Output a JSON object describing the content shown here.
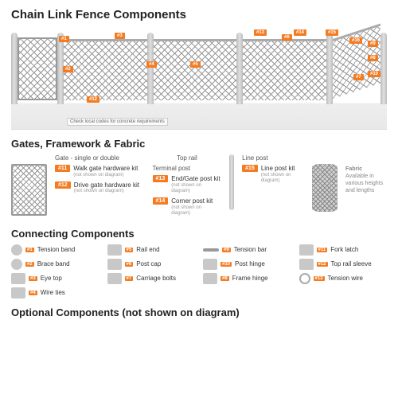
{
  "title": "Chain Link Fence Components",
  "sections": {
    "s2": "Gates, Framework & Fabric",
    "s3": "Connecting Components",
    "s4": "Optional Components (not shown on diagram)"
  },
  "note": "Check local codes for concrete requirements",
  "tags": [
    {
      "n": "#1",
      "t": 12,
      "l": 60
    },
    {
      "n": "#2",
      "t": 50,
      "l": 65
    },
    {
      "n": "#12",
      "t": 88,
      "l": 95
    },
    {
      "n": "#3",
      "t": 8,
      "l": 130
    },
    {
      "n": "#4",
      "t": 44,
      "l": 170
    },
    {
      "n": "#5",
      "t": 44,
      "l": 225
    },
    {
      "n": "#13",
      "t": 4,
      "l": 305
    },
    {
      "n": "#6",
      "t": 10,
      "l": 340
    },
    {
      "n": "#14",
      "t": 4,
      "l": 355
    },
    {
      "n": "#15",
      "t": 4,
      "l": 395
    },
    {
      "n": "#16",
      "t": 14,
      "l": 425
    },
    {
      "n": "#7",
      "t": 60,
      "l": 430
    },
    {
      "n": "#9",
      "t": 18,
      "l": 448
    },
    {
      "n": "#8",
      "t": 36,
      "l": 448
    },
    {
      "n": "#10",
      "t": 56,
      "l": 448
    }
  ],
  "accent": "#f47b20",
  "gateLabel": "Gate - single or double",
  "kits": {
    "g1": {
      "n": "#11",
      "t": "Walk gate hardware kit",
      "s": "(not shown on diagram)"
    },
    "g2": {
      "n": "#12",
      "t": "Drive gate hardware kit",
      "s": "(not shown on diagram)"
    },
    "p1": {
      "n": "#13",
      "t": "End/Gate post kit",
      "s": "(not shown on diagram)"
    },
    "p2": {
      "n": "#14",
      "t": "Corner post kit",
      "s": "(not shown on diagram)"
    },
    "l1": {
      "n": "#15",
      "t": "Line post kit",
      "s": "(not shown on diagram)"
    }
  },
  "labels": {
    "toprail": "Top rail",
    "terminal": "Terminal post",
    "line": "Line post",
    "fabric": "Fabric",
    "fabricNote": "Available in various heights and lengths"
  },
  "components": [
    {
      "n": "#1",
      "t": "Tension band",
      "i": "round"
    },
    {
      "n": "#5",
      "t": "Rail end",
      "i": ""
    },
    {
      "n": "#9",
      "t": "Tension bar",
      "i": "bar"
    },
    {
      "n": "#11",
      "t": "Fork latch",
      "i": ""
    },
    {
      "n": "#2",
      "t": "Brace band",
      "i": "round"
    },
    {
      "n": "#6",
      "t": "Post cap",
      "i": ""
    },
    {
      "n": "#10",
      "t": "Post hinge",
      "i": ""
    },
    {
      "n": "#12",
      "t": "Top rail sleeve",
      "i": ""
    },
    {
      "n": "#3",
      "t": "Eye top",
      "i": ""
    },
    {
      "n": "#7",
      "t": "Carriage bolts",
      "i": ""
    },
    {
      "n": "#8",
      "t": "Frame hinge",
      "i": ""
    },
    {
      "n": "#13",
      "t": "Tension wire",
      "i": "ring"
    },
    {
      "n": "#4",
      "t": "Wire ties",
      "i": ""
    }
  ]
}
